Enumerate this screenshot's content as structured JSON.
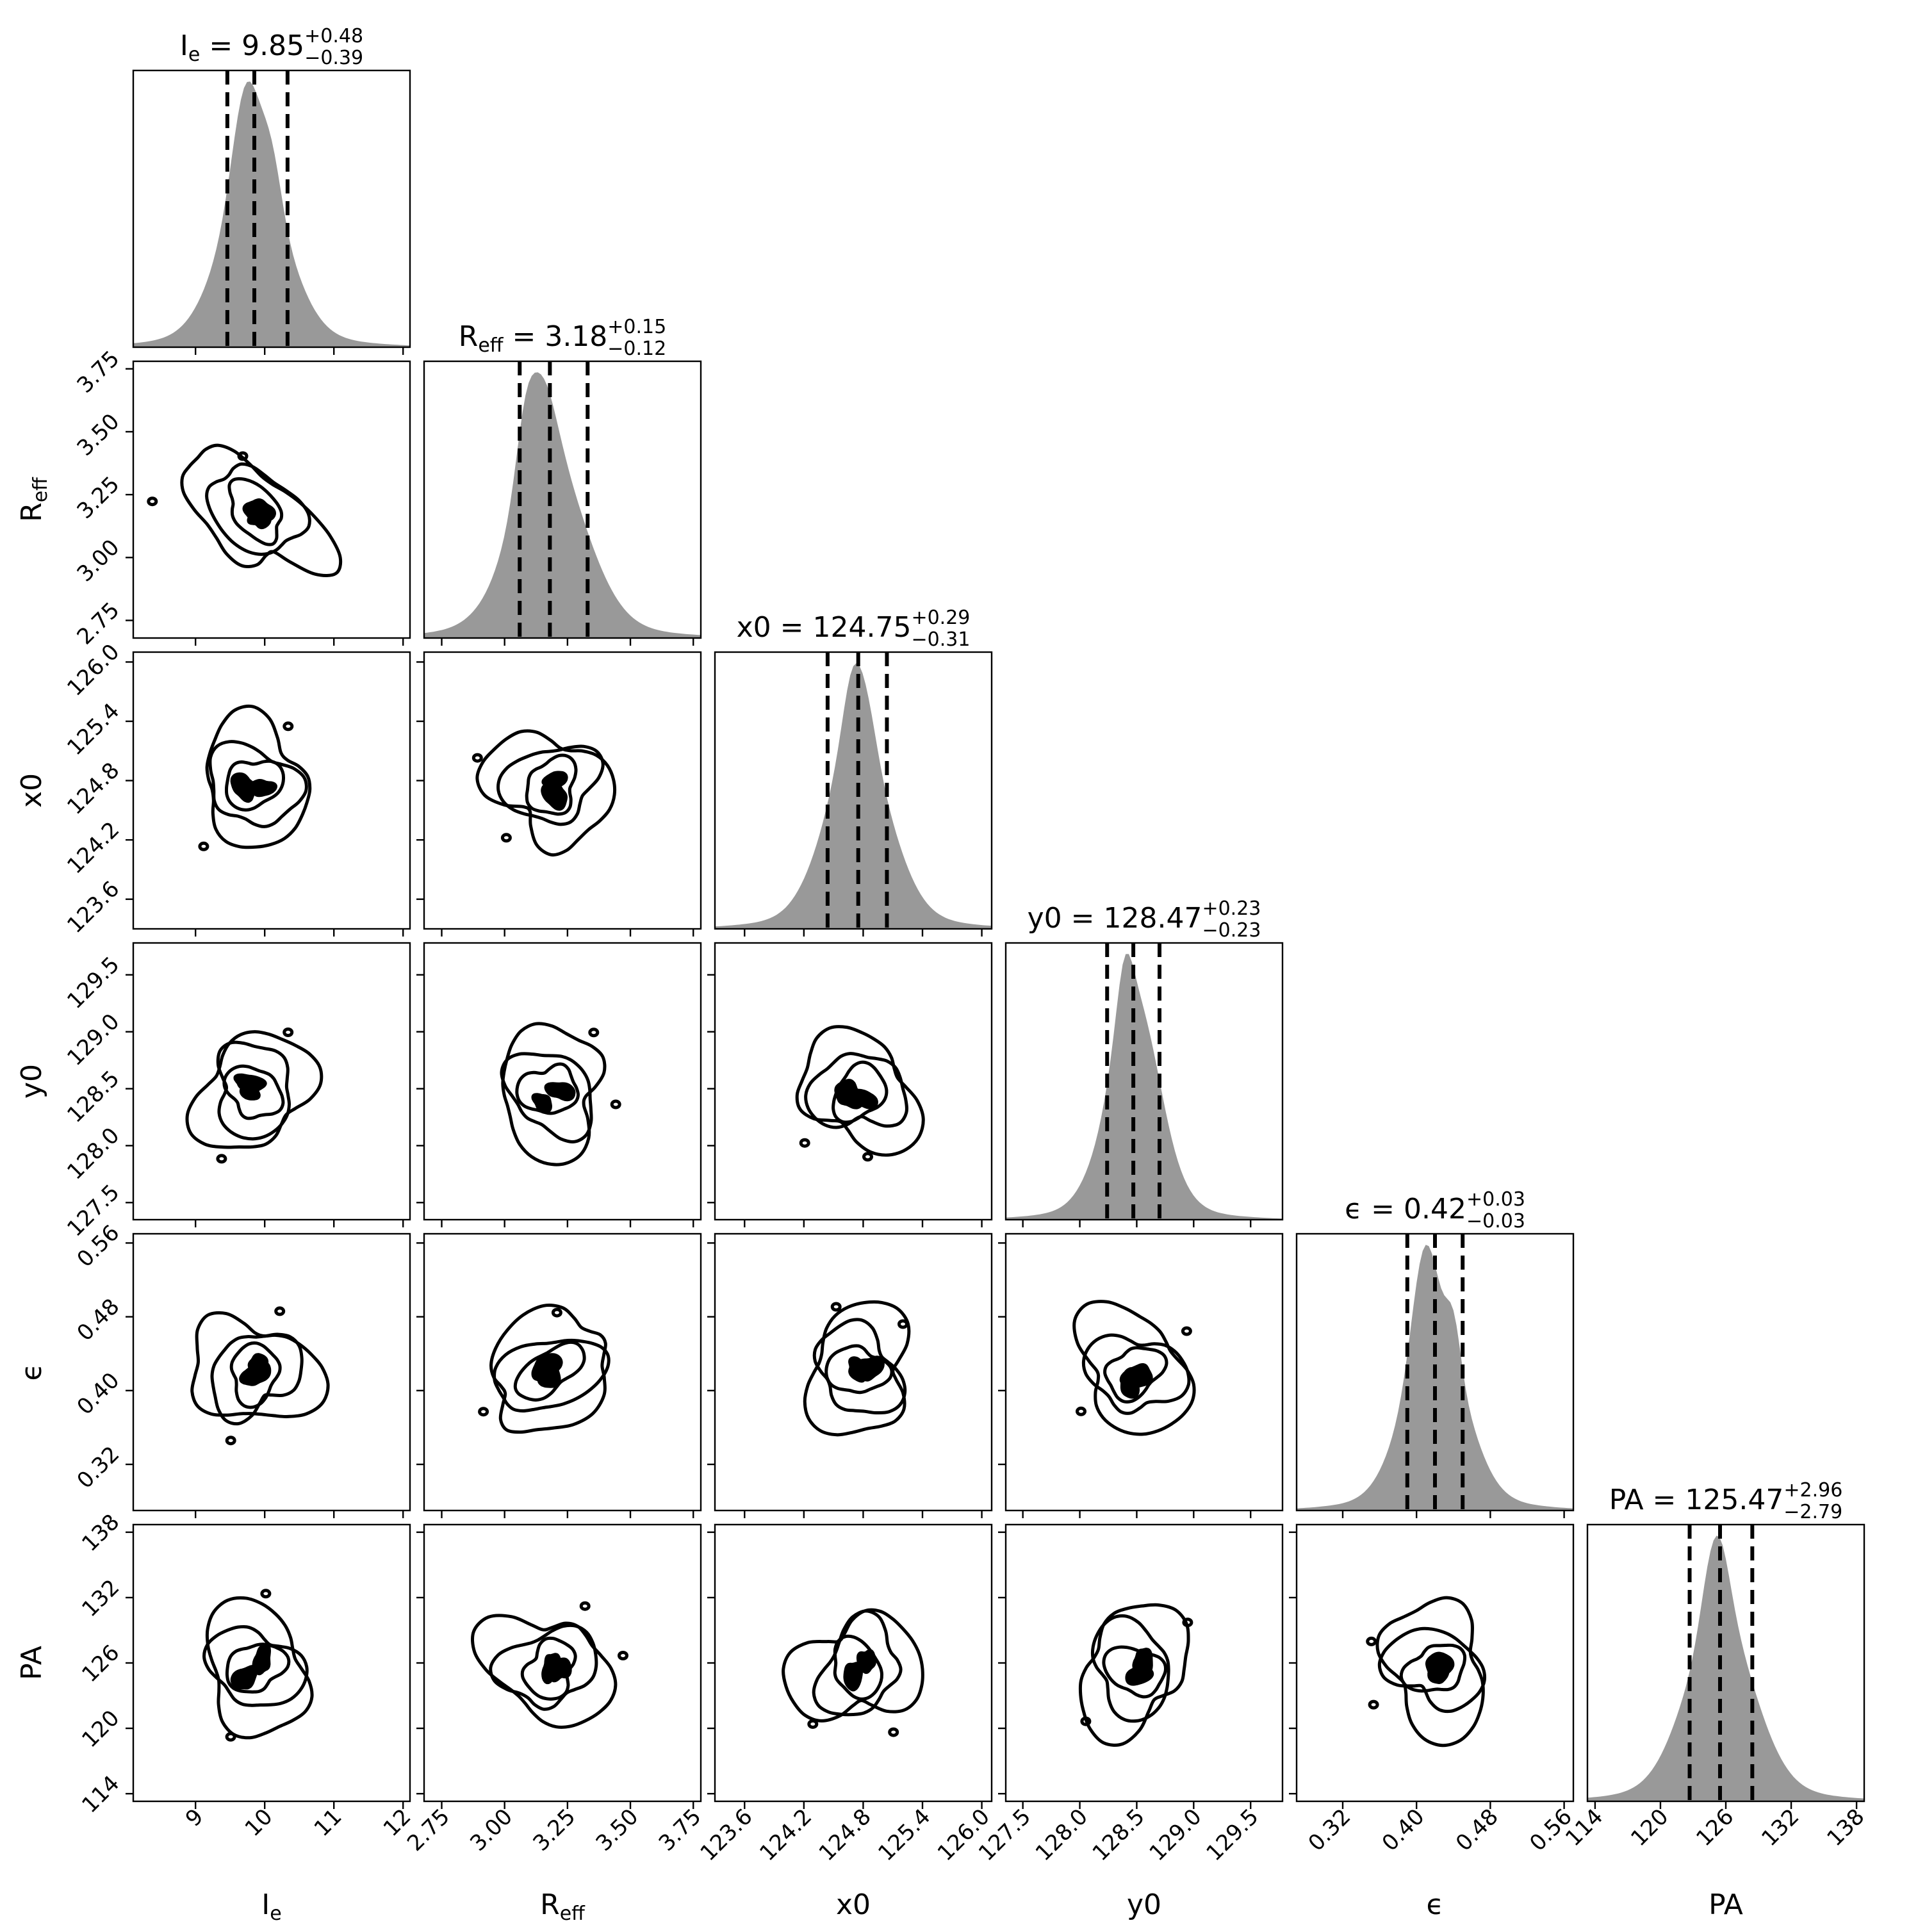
{
  "chart_data": {
    "type": "corner",
    "parameters": [
      {
        "key": "Ie",
        "label": "Iₑ",
        "label_main": "I",
        "label_sub": "e",
        "median": 9.85,
        "err_plus": 0.48,
        "err_minus": 0.39,
        "range": [
          8.1,
          12.1
        ],
        "ticks": [
          9,
          10,
          11,
          12
        ],
        "tick_labels": [
          "9",
          "10",
          "11",
          "12"
        ]
      },
      {
        "key": "Reff",
        "label": "Rₑff",
        "label_main": "R",
        "label_sub": "eff",
        "median": 3.18,
        "err_plus": 0.15,
        "err_minus": 0.12,
        "range": [
          2.68,
          3.78
        ],
        "ticks": [
          2.75,
          3.0,
          3.25,
          3.5,
          3.75
        ],
        "tick_labels": [
          "2.75",
          "3.00",
          "3.25",
          "3.50",
          "3.75"
        ]
      },
      {
        "key": "x0",
        "label": "x0",
        "label_main": "x0",
        "label_sub": "",
        "median": 124.75,
        "err_plus": 0.29,
        "err_minus": 0.31,
        "range": [
          123.3,
          126.1
        ],
        "ticks": [
          123.6,
          124.2,
          124.8,
          125.4,
          126.0
        ],
        "tick_labels": [
          "123.6",
          "124.2",
          "124.8",
          "125.4",
          "126.0"
        ]
      },
      {
        "key": "y0",
        "label": "y0",
        "label_main": "y0",
        "label_sub": "",
        "median": 128.47,
        "err_plus": 0.23,
        "err_minus": 0.23,
        "range": [
          127.35,
          129.78
        ],
        "ticks": [
          127.5,
          128.0,
          128.5,
          129.0,
          129.5
        ],
        "tick_labels": [
          "127.5",
          "128.0",
          "128.5",
          "129.0",
          "129.5"
        ]
      },
      {
        "key": "eps",
        "label": "ϵ",
        "label_main": "ϵ",
        "label_sub": "",
        "median": 0.42,
        "err_plus": 0.03,
        "err_minus": 0.03,
        "range": [
          0.27,
          0.57
        ],
        "ticks": [
          0.32,
          0.4,
          0.48,
          0.56
        ],
        "tick_labels": [
          "0.32",
          "0.40",
          "0.48",
          "0.56"
        ]
      },
      {
        "key": "PA",
        "label": "PA",
        "label_main": "PA",
        "label_sub": "",
        "median": 125.47,
        "err_plus": 2.96,
        "err_minus": 2.79,
        "range": [
          113.3,
          138.7
        ],
        "ticks": [
          114,
          120,
          126,
          132,
          138
        ],
        "tick_labels": [
          "114",
          "120",
          "126",
          "132",
          "138"
        ]
      }
    ],
    "titles": [
      {
        "lhs": "Iₑ",
        "lhs_main": "I",
        "lhs_sub": "e",
        "value": "9.85",
        "plus": "+0.48",
        "minus": "−0.39"
      },
      {
        "lhs": "Rₑff",
        "lhs_main": "R",
        "lhs_sub": "eff",
        "value": "3.18",
        "plus": "+0.15",
        "minus": "−0.12"
      },
      {
        "lhs": "x0",
        "lhs_main": "x0",
        "lhs_sub": "",
        "value": "124.75",
        "plus": "+0.29",
        "minus": "−0.31"
      },
      {
        "lhs": "y0",
        "lhs_main": "y0",
        "lhs_sub": "",
        "value": "128.47",
        "plus": "+0.23",
        "minus": "−0.23"
      },
      {
        "lhs": "ϵ",
        "lhs_main": "ϵ",
        "lhs_sub": "",
        "value": "0.42",
        "plus": "+0.03",
        "minus": "−0.03"
      },
      {
        "lhs": "PA",
        "lhs_main": "PA",
        "lhs_sub": "",
        "value": "125.47",
        "plus": "+2.96",
        "minus": "−2.79"
      }
    ],
    "quantile_lines": "median and 16th/84th percentiles, dashed black",
    "histogram_color": "#999999",
    "contour_color": "#000000",
    "grid": false
  }
}
